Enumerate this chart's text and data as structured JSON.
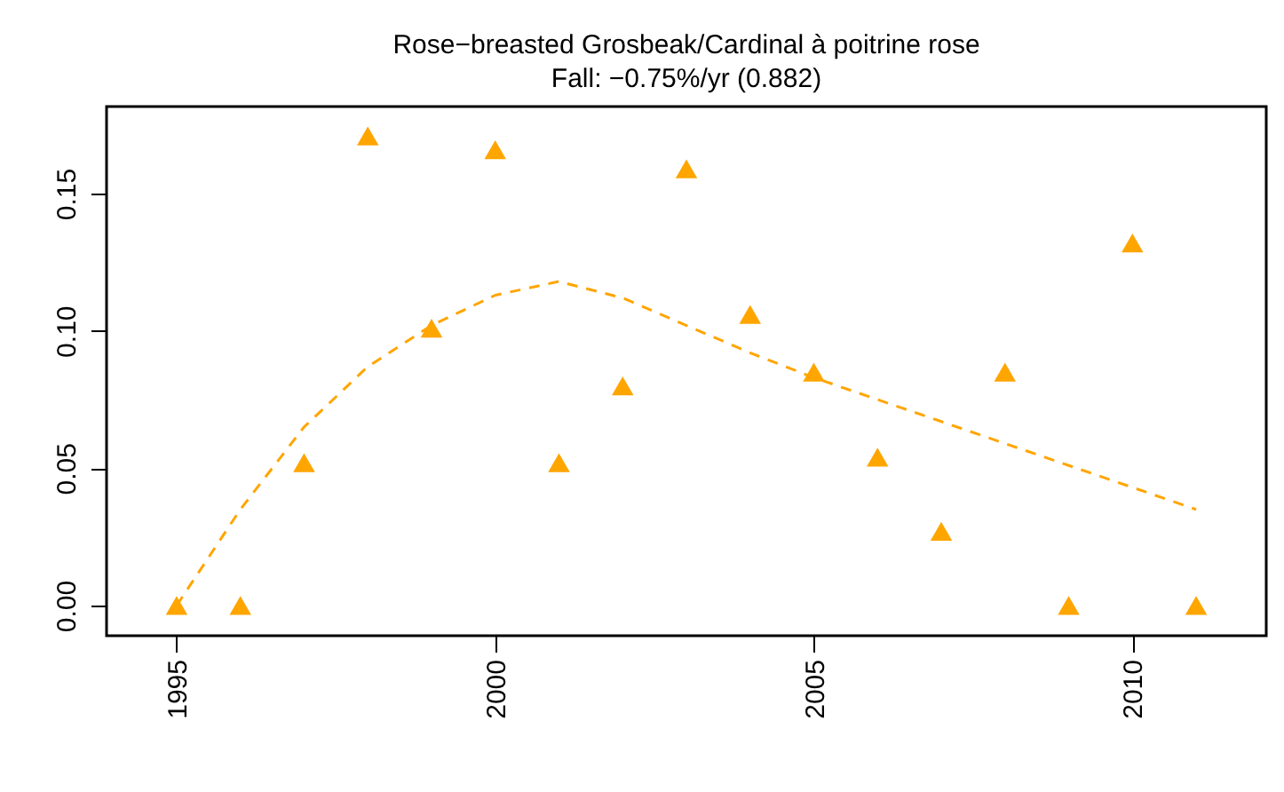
{
  "chart_data": {
    "type": "scatter",
    "title": "Rose−breasted Grosbeak/Cardinal à poitrine rose",
    "subtitle": "Fall: −0.75%/yr (0.882)",
    "xlim": [
      1993.9,
      2012.1
    ],
    "xticks": [
      1995,
      2000,
      2005,
      2010
    ],
    "ylim": [
      -0.011,
      0.1817
    ],
    "yticks": [
      {
        "value": 0,
        "label": "0.00"
      },
      0.05,
      {
        "value": 0.1,
        "label": "0.10"
      },
      0.15
    ],
    "grid": false,
    "series": [
      {
        "marker": "triangle",
        "color": "#ffa500",
        "x": [
          1995,
          1996,
          1997,
          1998,
          1999,
          2000,
          2001,
          2002,
          2003,
          2004,
          2005,
          2006,
          2007,
          2008,
          2009,
          2010,
          2011
        ],
        "values": [
          0,
          0,
          0.052,
          0.171,
          0.101,
          0.166,
          0.052,
          0.08,
          0.159,
          0.106,
          0.085,
          0.054,
          0.027,
          0.085,
          0,
          0.132,
          0
        ]
      },
      {
        "type": "line",
        "line_style": "dashed",
        "color": "#ffa500",
        "x": [
          1995,
          1996,
          1997,
          1998,
          1999,
          2000,
          2001,
          2002,
          2003,
          2004,
          2005,
          2006,
          2007,
          2008,
          2009,
          2010,
          2011
        ],
        "values": [
          0,
          0.035,
          0.065,
          0.087,
          0.102,
          0.113,
          0.118,
          0.112,
          0.102,
          0.092,
          0.083,
          0.075,
          0.067,
          0.059,
          0.051,
          0.043,
          0.035
        ]
      }
    ]
  }
}
